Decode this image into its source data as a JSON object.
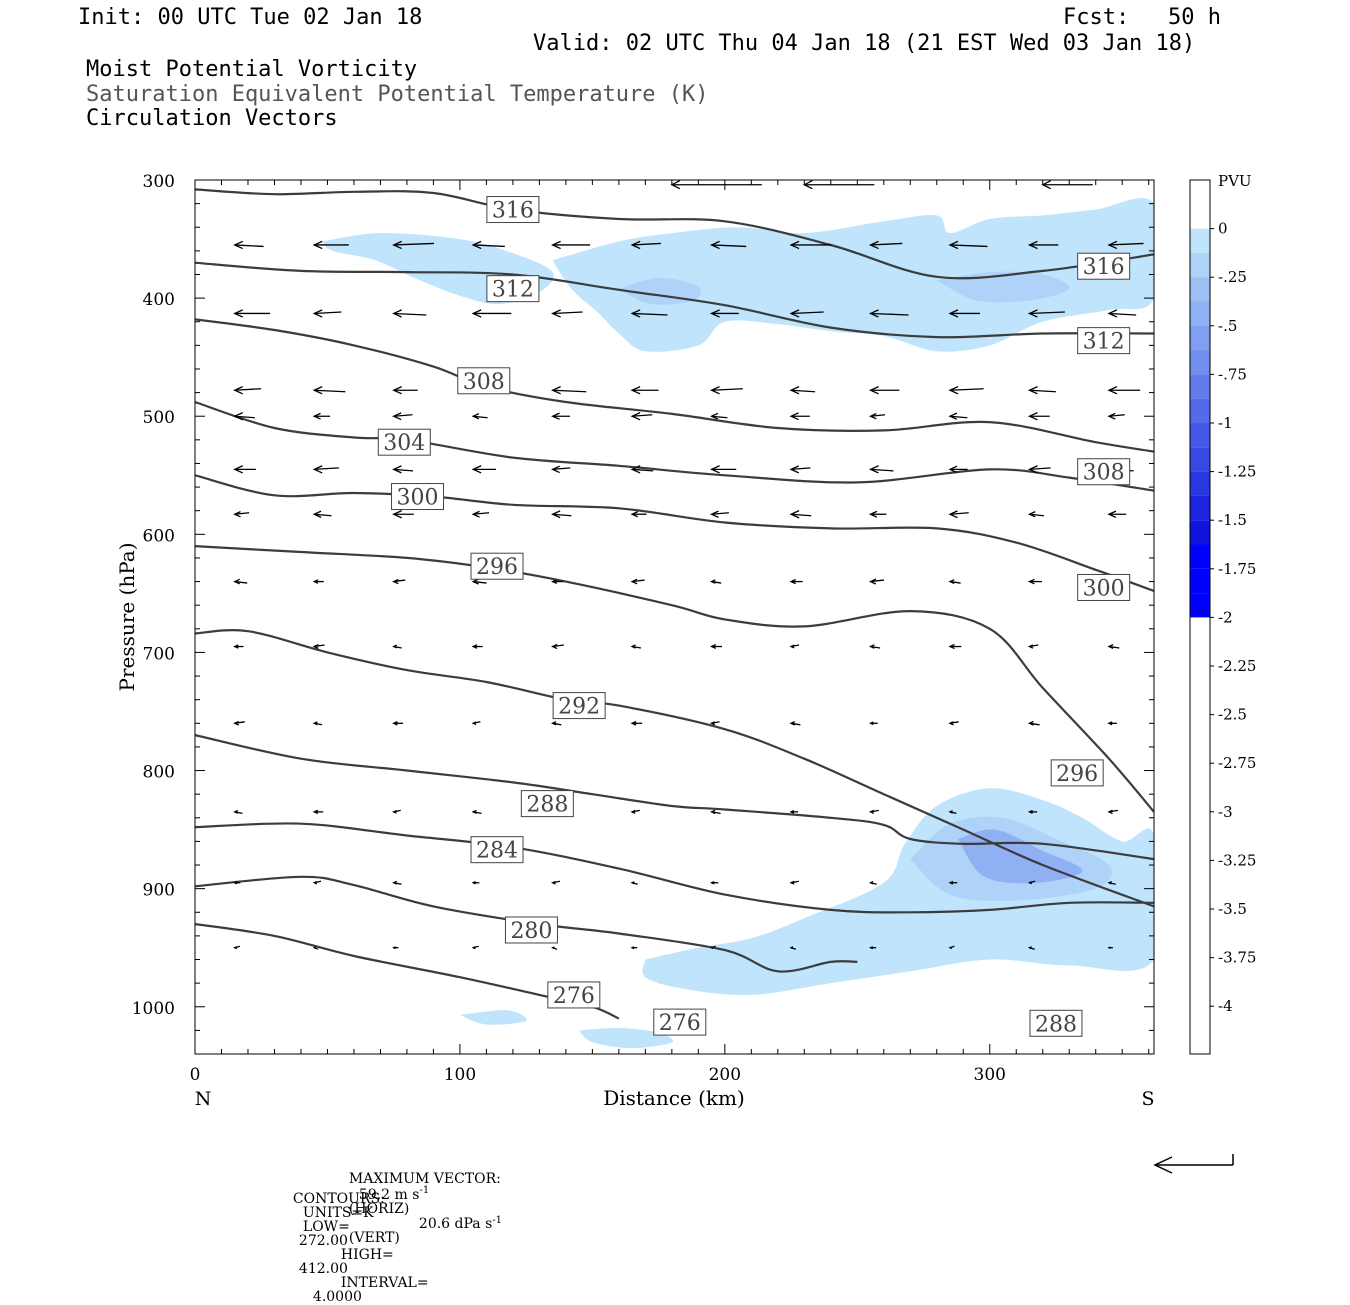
{
  "header": {
    "init": "Init: 00 UTC Tue 02 Jan 18",
    "fcst_label": "Fcst:",
    "fcst_value": "50 h",
    "valid": "Valid: 02 UTC Thu 04 Jan 18 (21 EST Wed 03 Jan 18)",
    "field1": "Moist Potential Vorticity",
    "field2": "Saturation Equivalent Potential Temperature (K)",
    "field3": "Circulation Vectors"
  },
  "footer": {
    "max_vector_label": "MAXIMUM VECTOR:",
    "horiz_value": "59.2 m s",
    "horiz_exp": "-1",
    "horiz_tag": "(HORIZ)",
    "vert_value": "20.6 dPa s",
    "vert_exp": "-1",
    "vert_tag": "(VERT)",
    "contours_label": "CONTOURS:",
    "units": "UNITS=K",
    "low_label": "LOW=",
    "low": "272.00",
    "high_label": "HIGH=",
    "high": "412.00",
    "interval_label": "INTERVAL=",
    "interval": "4.0000"
  },
  "colors": {
    "contour": "#3c3c3c",
    "pv_fill": [
      "#ffffff",
      "#ffffff",
      "#bfe4fc",
      "#aed2f8",
      "#9fc0f5",
      "#8fb0f2",
      "#809ff0",
      "#718ded",
      "#627ceb",
      "#546ae8",
      "#4659e6",
      "#3848e3",
      "#2a36e0",
      "#1c25dd",
      "#0e14db",
      "#0000ff"
    ]
  },
  "chart_data": {
    "type": "cross-section",
    "xlabel": "Distance (km)",
    "ylabel": "Pressure (hPa)",
    "xlim": [
      0,
      362
    ],
    "ylim": [
      300,
      1040
    ],
    "y_inverted": true,
    "x_ticks": [
      0,
      100,
      200,
      300
    ],
    "y_ticks": [
      300,
      400,
      500,
      600,
      700,
      800,
      900,
      1000
    ],
    "x_endpoints": {
      "left": "N",
      "right": "S"
    },
    "colorbar": {
      "unit": "PVU",
      "labels": [
        "0",
        "-.25",
        "-.5",
        "-.75",
        "-1",
        "-1.25",
        "-1.5",
        "-1.75",
        "-2",
        "-2.25",
        "-2.5",
        "-2.75",
        "-3",
        "-3.25",
        "-3.5",
        "-3.75",
        "-4"
      ]
    },
    "theta_es_contours": [
      {
        "value": 316,
        "points": [
          [
            0,
            308
          ],
          [
            30,
            312
          ],
          [
            60,
            310
          ],
          [
            90,
            311
          ],
          [
            120,
            325
          ],
          [
            160,
            333
          ],
          [
            200,
            335
          ],
          [
            240,
            355
          ],
          [
            280,
            382
          ],
          [
            320,
            377
          ],
          [
            362,
            363
          ]
        ],
        "labels": [
          [
            120,
            325
          ],
          [
            343,
            373
          ]
        ]
      },
      {
        "value": 312,
        "points": [
          [
            0,
            370
          ],
          [
            40,
            377
          ],
          [
            80,
            378
          ],
          [
            120,
            380
          ],
          [
            160,
            393
          ],
          [
            200,
            406
          ],
          [
            240,
            425
          ],
          [
            280,
            433
          ],
          [
            320,
            430
          ],
          [
            362,
            430
          ]
        ],
        "labels": [
          [
            120,
            392
          ],
          [
            343,
            436
          ]
        ]
      },
      {
        "value": 308,
        "points": [
          [
            0,
            418
          ],
          [
            30,
            427
          ],
          [
            60,
            440
          ],
          [
            90,
            458
          ],
          [
            110,
            475
          ],
          [
            140,
            488
          ],
          [
            180,
            498
          ],
          [
            220,
            510
          ],
          [
            260,
            512
          ],
          [
            300,
            505
          ],
          [
            340,
            522
          ],
          [
            362,
            530
          ]
        ],
        "labels": [
          [
            109,
            470
          ],
          [
            343,
            547
          ]
        ]
      },
      {
        "value": 304,
        "points": [
          [
            0,
            488
          ],
          [
            30,
            510
          ],
          [
            60,
            518
          ],
          [
            80,
            520
          ],
          [
            120,
            535
          ],
          [
            160,
            542
          ],
          [
            200,
            550
          ],
          [
            250,
            556
          ],
          [
            300,
            545
          ],
          [
            330,
            552
          ],
          [
            362,
            563
          ]
        ],
        "labels": [
          [
            79,
            522
          ]
        ]
      },
      {
        "value": 300,
        "points": [
          [
            0,
            550
          ],
          [
            30,
            567
          ],
          [
            60,
            565
          ],
          [
            90,
            568
          ],
          [
            120,
            575
          ],
          [
            160,
            578
          ],
          [
            200,
            590
          ],
          [
            240,
            595
          ],
          [
            280,
            595
          ],
          [
            310,
            607
          ],
          [
            340,
            630
          ],
          [
            362,
            648
          ]
        ],
        "labels": [
          [
            84,
            568
          ],
          [
            343,
            645
          ]
        ]
      },
      {
        "value": 296,
        "points": [
          [
            0,
            610
          ],
          [
            40,
            615
          ],
          [
            80,
            620
          ],
          [
            110,
            628
          ],
          [
            140,
            640
          ],
          [
            180,
            660
          ],
          [
            200,
            672
          ],
          [
            230,
            678
          ],
          [
            270,
            665
          ],
          [
            300,
            680
          ],
          [
            320,
            730
          ],
          [
            345,
            790
          ],
          [
            362,
            835
          ]
        ],
        "labels": [
          [
            114,
            627
          ],
          [
            333,
            802
          ]
        ]
      },
      {
        "value": 292,
        "points": [
          [
            0,
            684
          ],
          [
            20,
            682
          ],
          [
            50,
            700
          ],
          [
            80,
            715
          ],
          [
            110,
            725
          ],
          [
            140,
            740
          ],
          [
            160,
            745
          ],
          [
            200,
            765
          ],
          [
            230,
            790
          ],
          [
            260,
            820
          ],
          [
            290,
            850
          ],
          [
            320,
            880
          ],
          [
            362,
            915
          ]
        ],
        "labels": [
          [
            145,
            745
          ]
        ]
      },
      {
        "value": 288,
        "points": [
          [
            0,
            770
          ],
          [
            40,
            790
          ],
          [
            80,
            800
          ],
          [
            120,
            810
          ],
          [
            150,
            820
          ],
          [
            180,
            830
          ],
          [
            200,
            833
          ],
          [
            240,
            840
          ],
          [
            260,
            846
          ],
          [
            270,
            858
          ],
          [
            290,
            862
          ],
          [
            320,
            862
          ],
          [
            362,
            875
          ]
        ],
        "labels": [
          [
            133,
            828
          ],
          [
            325,
            1014
          ]
        ]
      },
      {
        "value": 284,
        "points": [
          [
            0,
            848
          ],
          [
            40,
            845
          ],
          [
            80,
            855
          ],
          [
            120,
            865
          ],
          [
            160,
            883
          ],
          [
            200,
            905
          ],
          [
            240,
            918
          ],
          [
            270,
            920
          ],
          [
            300,
            918
          ],
          [
            330,
            912
          ],
          [
            362,
            912
          ]
        ],
        "labels": [
          [
            114,
            867
          ]
        ]
      },
      {
        "value": 280,
        "points": [
          [
            0,
            898
          ],
          [
            40,
            890
          ],
          [
            60,
            897
          ],
          [
            90,
            915
          ],
          [
            130,
            930
          ],
          [
            160,
            938
          ],
          [
            200,
            952
          ],
          [
            220,
            970
          ],
          [
            240,
            962
          ],
          [
            250,
            962
          ]
        ],
        "labels": [
          [
            127,
            935
          ]
        ]
      },
      {
        "value": 276,
        "points": [
          [
            0,
            930
          ],
          [
            30,
            940
          ],
          [
            60,
            957
          ],
          [
            100,
            975
          ],
          [
            130,
            990
          ],
          [
            150,
            1000
          ],
          [
            160,
            1010
          ]
        ],
        "labels": [
          [
            143,
            990
          ],
          [
            183,
            1013
          ]
        ]
      }
    ]
  }
}
